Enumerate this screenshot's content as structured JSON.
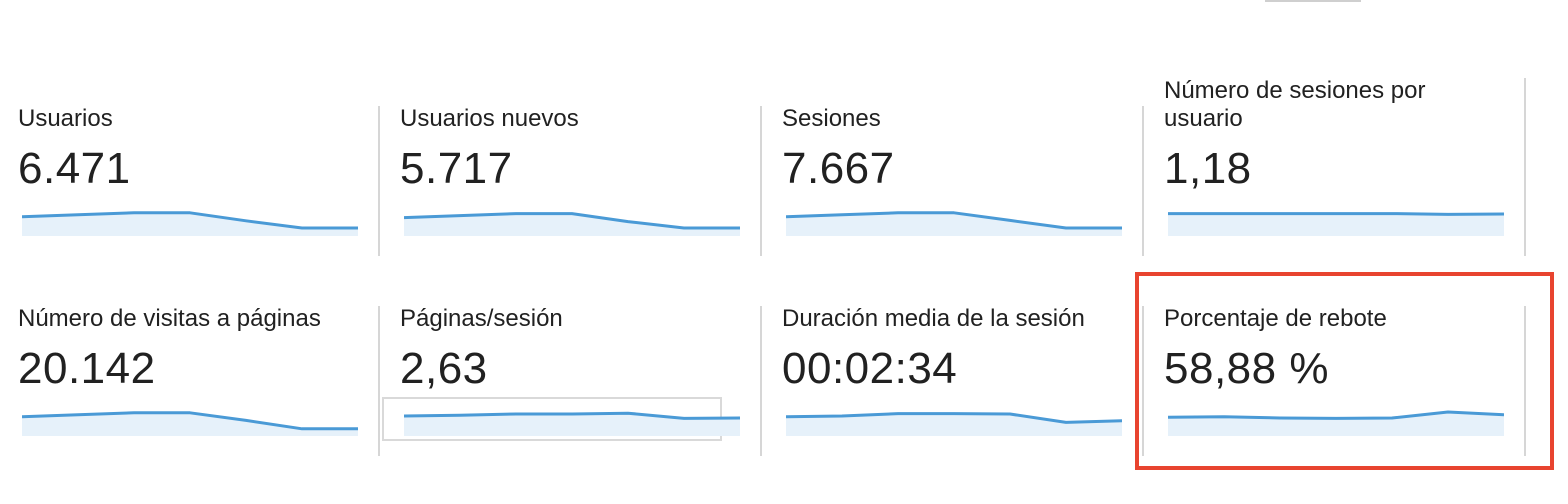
{
  "metrics": [
    {
      "title": "Usuarios",
      "value": "6.471",
      "trend": [
        0.48,
        0.53,
        0.58,
        0.58,
        0.38,
        0.2,
        0.2
      ]
    },
    {
      "title": "Usuarios nuevos",
      "value": "5.717",
      "trend": [
        0.46,
        0.51,
        0.56,
        0.56,
        0.36,
        0.2,
        0.2
      ]
    },
    {
      "title": "Sesiones",
      "value": "7.667",
      "trend": [
        0.48,
        0.53,
        0.58,
        0.58,
        0.39,
        0.2,
        0.2
      ]
    },
    {
      "title": "Número de sesiones por usuario",
      "value": "1,18",
      "trend": [
        0.56,
        0.56,
        0.56,
        0.56,
        0.56,
        0.54,
        0.55
      ]
    },
    {
      "title": "Número de visitas a páginas",
      "value": "20.142",
      "trend": [
        0.48,
        0.53,
        0.58,
        0.58,
        0.39,
        0.18,
        0.18
      ]
    },
    {
      "title": "Páginas/sesión",
      "value": "2,63",
      "trend": [
        0.5,
        0.52,
        0.55,
        0.55,
        0.57,
        0.44,
        0.45
      ]
    },
    {
      "title": "Duración media de la sesión",
      "value": "00:02:34",
      "trend": [
        0.48,
        0.5,
        0.56,
        0.56,
        0.55,
        0.34,
        0.38
      ]
    },
    {
      "title": "Porcentaje de rebote",
      "value": "58,88 %",
      "trend": [
        0.47,
        0.48,
        0.45,
        0.44,
        0.45,
        0.6,
        0.53
      ]
    }
  ],
  "colors": {
    "sparkline_line": "#4a9ad6",
    "sparkline_fill": "#e6f1fa",
    "highlight_border": "#e8442f"
  }
}
